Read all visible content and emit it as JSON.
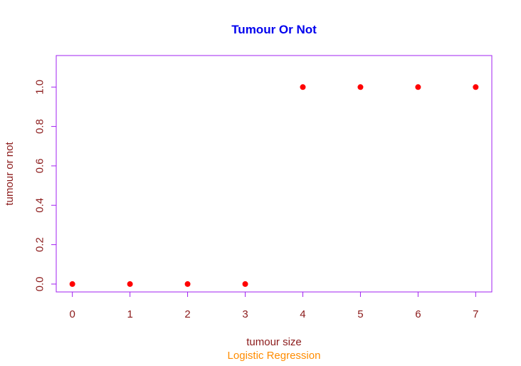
{
  "colors": {
    "title": "#0000ee",
    "axis_text": "#8b1a1a",
    "subtitle": "#ff8c00",
    "frame": "#a020f0",
    "points": "#ff0000"
  },
  "chart_data": {
    "type": "scatter",
    "title": "Tumour Or Not",
    "xlabel": "tumour size",
    "ylabel": "tumour or not",
    "subtitle": "Logistic Regression",
    "xlim": [
      -0.28,
      7.28
    ],
    "ylim": [
      -0.04,
      1.16
    ],
    "x_ticks": [
      0,
      1,
      2,
      3,
      4,
      5,
      6,
      7
    ],
    "x_tick_labels": [
      "0",
      "1",
      "2",
      "3",
      "4",
      "5",
      "6",
      "7"
    ],
    "y_ticks": [
      0.0,
      0.2,
      0.4,
      0.6,
      0.8,
      1.0
    ],
    "y_tick_labels": [
      "0.0",
      "0.2",
      "0.4",
      "0.6",
      "0.8",
      "1.0"
    ],
    "x": [
      0,
      1,
      2,
      3,
      4,
      5,
      6,
      7
    ],
    "y": [
      0,
      0,
      0,
      0,
      1,
      1,
      1,
      1
    ],
    "grid": false,
    "legend": "none"
  }
}
